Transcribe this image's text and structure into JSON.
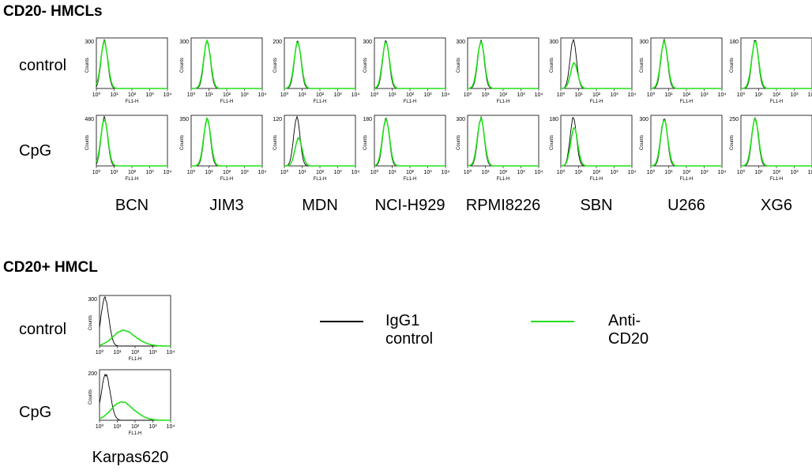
{
  "sections": {
    "neg_title": "CD20- HMCLs",
    "pos_title": "CD20+ HMCL"
  },
  "row_labels": {
    "control": "control",
    "cpg": "CpG"
  },
  "legend": {
    "igg_label": "IgG1 control",
    "igg_color": "#000000",
    "anti_label": "Anti-CD20",
    "anti_color": "#22e01a"
  },
  "axis_text": {
    "x_label": "FL1-H",
    "y_label": "Counts",
    "x_ticks": [
      "10⁰",
      "10¹",
      "10²",
      "10³",
      "10⁴"
    ]
  },
  "chart_data": [
    {
      "type": "histogram-grid",
      "group": "CD20- HMCLs",
      "x_scale": "log",
      "xlim": [
        1,
        10000
      ],
      "cell_lines": [
        "BCN",
        "JIM3",
        "MDN",
        "NCI-H929",
        "RPMI8226",
        "SBN",
        "U266",
        "XG6"
      ],
      "y_max_labels": {
        "control": [
          "300",
          "300",
          "200",
          "300",
          "300",
          "300",
          "300",
          "180"
        ],
        "CpG": [
          "480",
          "350",
          "120",
          "180",
          "300",
          "180",
          "300",
          "250"
        ]
      },
      "series": [
        {
          "name": "IgG1 control",
          "peak_log10": {
            "control": [
              0.45,
              0.9,
              0.75,
              0.65,
              0.75,
              0.7,
              0.75,
              0.8
            ],
            "CpG": [
              0.45,
              0.9,
              0.7,
              0.65,
              0.75,
              0.7,
              0.75,
              0.8
            ]
          }
        },
        {
          "name": "Anti-CD20",
          "peak_log10": {
            "control": [
              0.45,
              0.9,
              0.75,
              0.65,
              0.75,
              0.75,
              0.75,
              0.8
            ],
            "CpG": [
              0.45,
              0.9,
              0.8,
              0.65,
              0.75,
              0.75,
              0.75,
              0.8
            ]
          }
        }
      ]
    },
    {
      "type": "histogram-grid",
      "group": "CD20+ HMCL",
      "x_scale": "log",
      "xlim": [
        1,
        10000
      ],
      "cell_lines": [
        "Karpas620"
      ],
      "y_max_labels": {
        "control": [
          "300"
        ],
        "CpG": [
          "200"
        ]
      },
      "series": [
        {
          "name": "IgG1 control",
          "peak_log10": {
            "control": [
              0.3
            ],
            "CpG": [
              0.35
            ]
          }
        },
        {
          "name": "Anti-CD20",
          "peak_log10": {
            "control": [
              1.3
            ],
            "CpG": [
              1.2
            ]
          }
        }
      ]
    }
  ]
}
